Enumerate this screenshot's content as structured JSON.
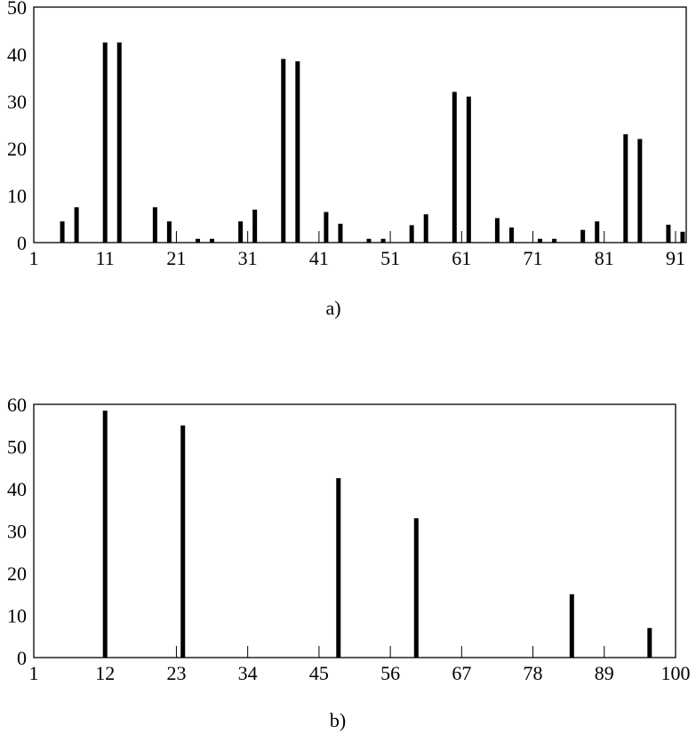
{
  "chart_data": [
    {
      "type": "bar",
      "caption": "a)",
      "x_ticks": [
        1,
        11,
        21,
        31,
        41,
        51,
        61,
        71,
        81,
        91
      ],
      "y_ticks": [
        0,
        10,
        20,
        30,
        40,
        50
      ],
      "xlim": [
        1,
        92.5
      ],
      "ylim": [
        0,
        50
      ],
      "grid": false,
      "x": [
        5,
        7,
        11,
        13,
        18,
        20,
        24,
        26,
        30,
        32,
        36,
        38,
        42,
        44,
        48,
        50,
        54,
        56,
        60,
        62,
        66,
        68,
        72,
        74,
        78,
        80,
        84,
        86,
        90,
        92
      ],
      "values": [
        4.5,
        7.5,
        42.5,
        42.5,
        7.5,
        4.5,
        0.8,
        0.8,
        4.5,
        7,
        39,
        38.5,
        6.5,
        4,
        0.8,
        0.8,
        3.7,
        6,
        32,
        31,
        5.2,
        3.2,
        0.8,
        0.8,
        2.7,
        4.5,
        23,
        22,
        3.8,
        2.3
      ]
    },
    {
      "type": "bar",
      "caption": "b)",
      "x_ticks": [
        1,
        12,
        23,
        34,
        45,
        56,
        67,
        78,
        89,
        100
      ],
      "y_ticks": [
        0,
        10,
        20,
        30,
        40,
        50,
        60
      ],
      "xlim": [
        1,
        100
      ],
      "ylim": [
        0,
        60
      ],
      "grid": false,
      "x": [
        12,
        24,
        48,
        60,
        84,
        96
      ],
      "values": [
        58.5,
        55,
        42.5,
        33,
        15,
        7
      ]
    }
  ]
}
